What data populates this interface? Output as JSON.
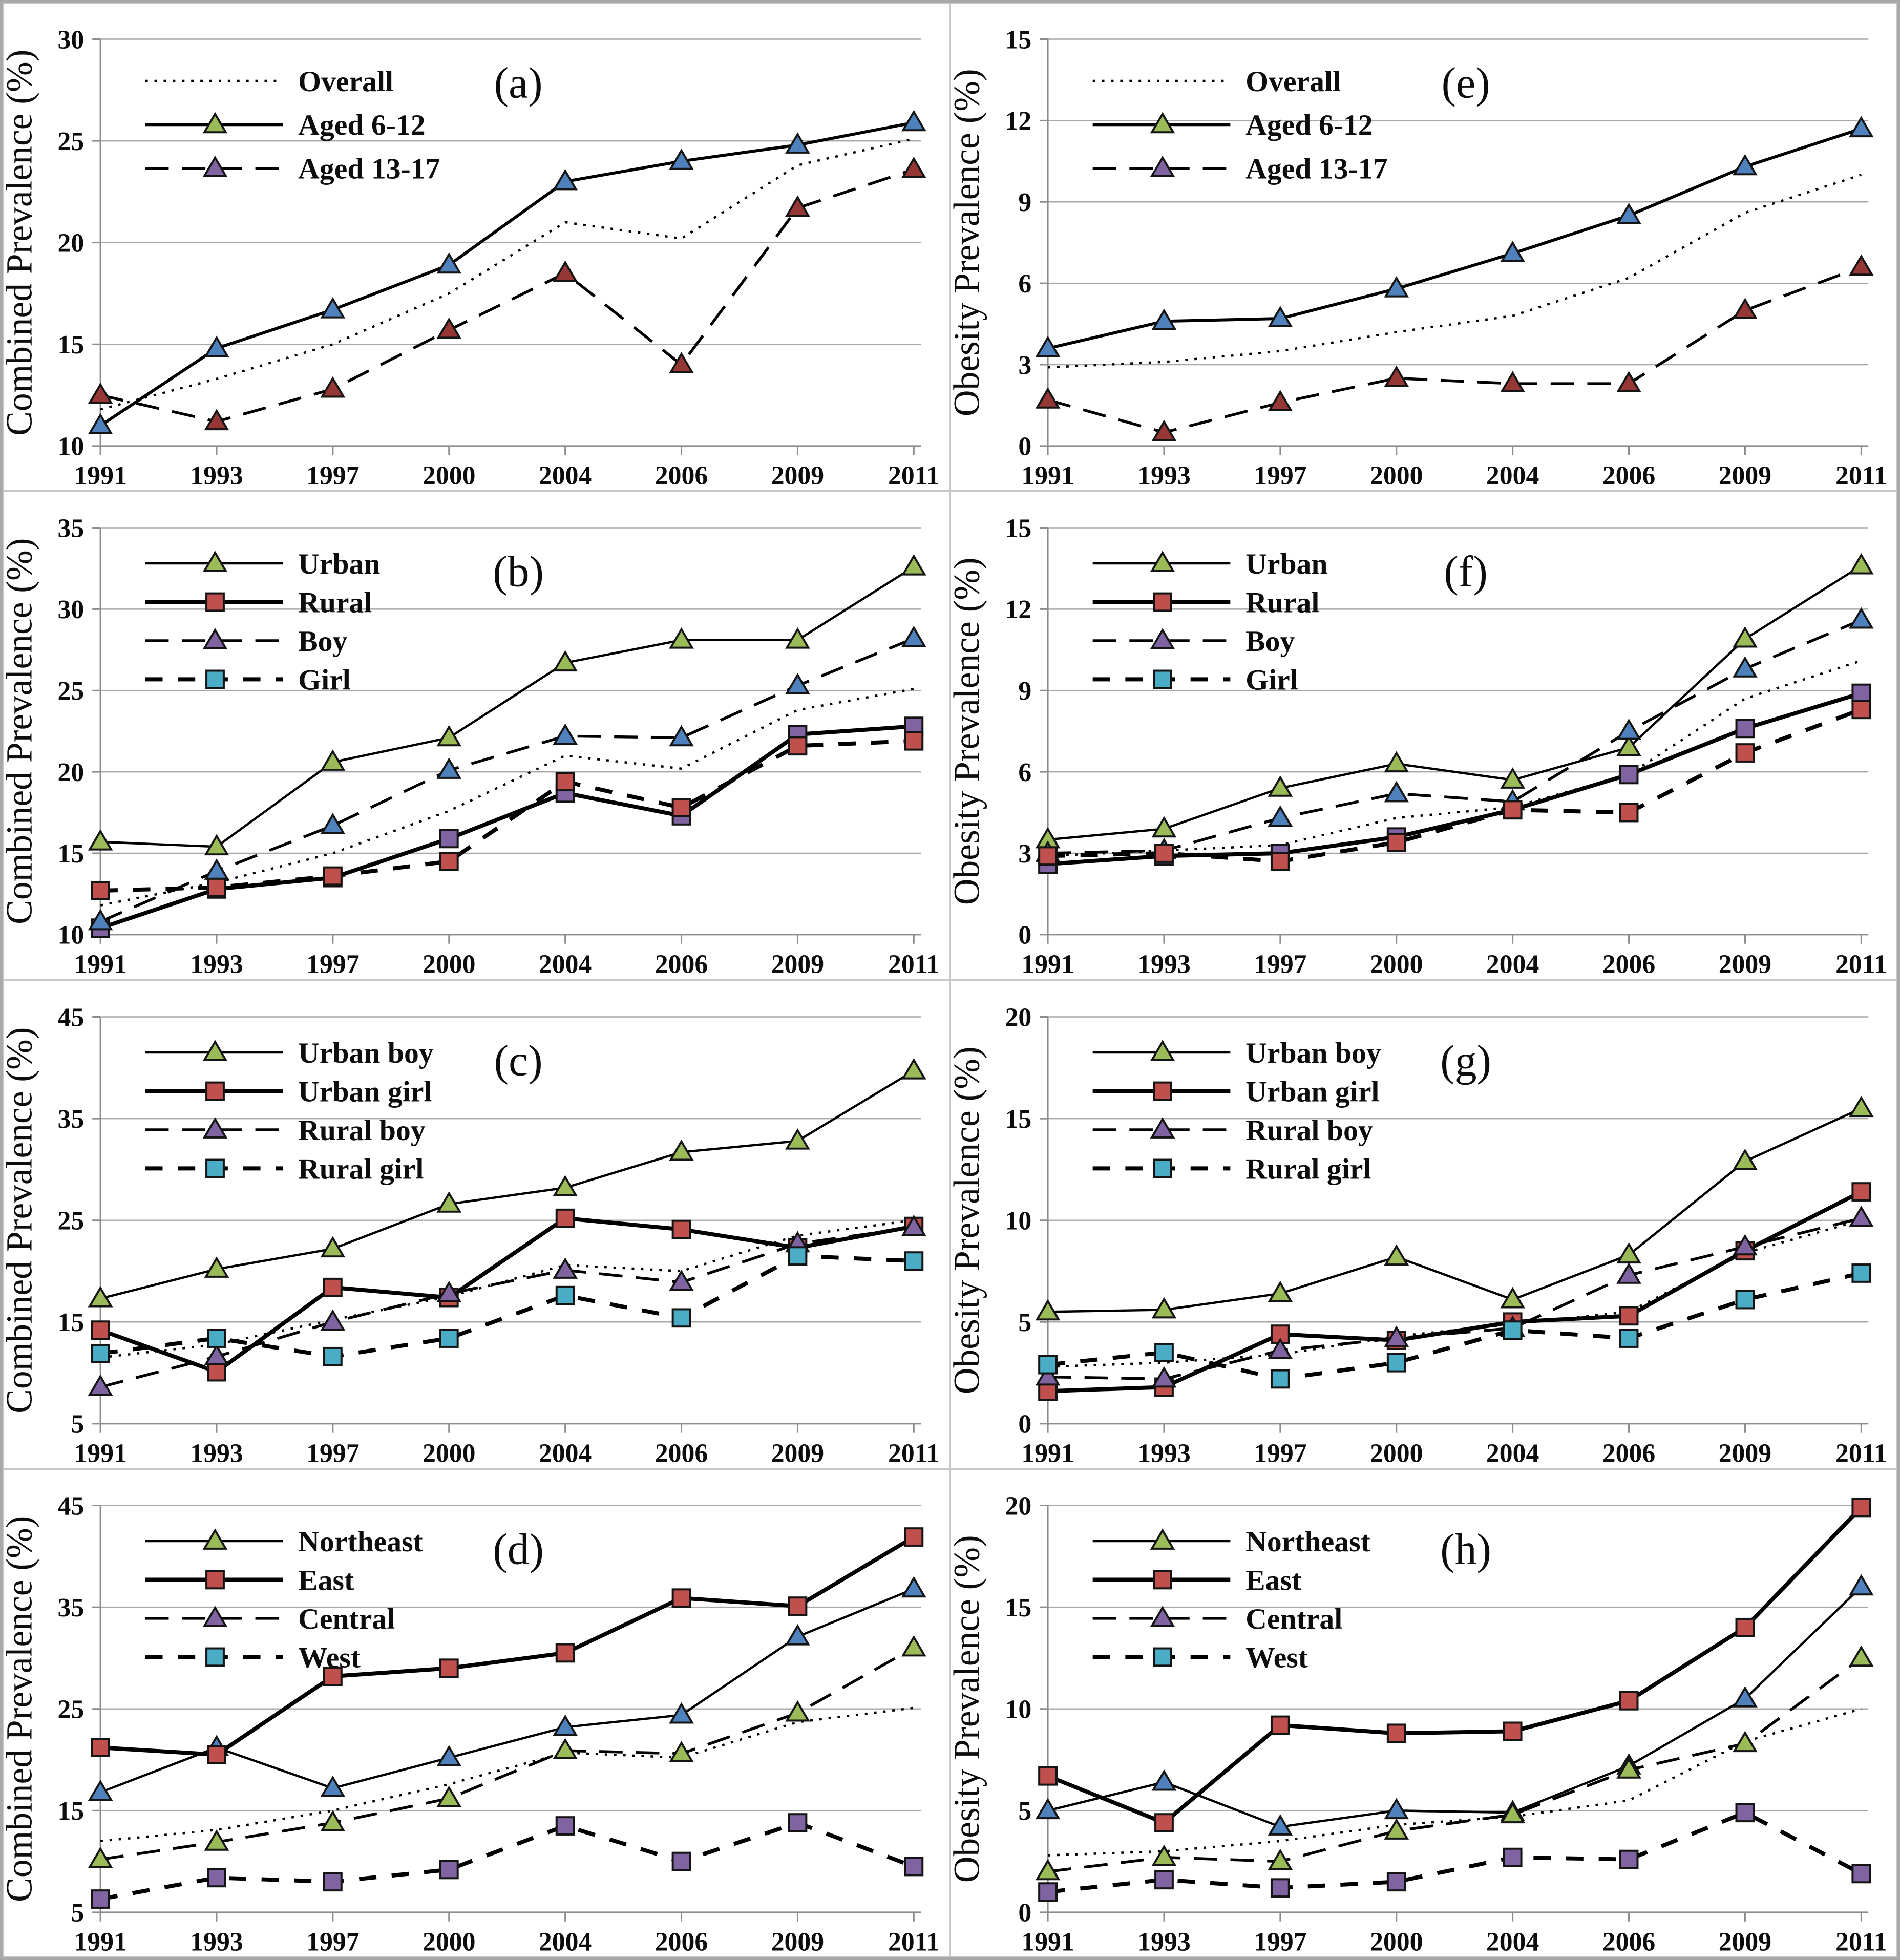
{
  "figure": {
    "years": [
      "1991",
      "1993",
      "1997",
      "2000",
      "2004",
      "2006",
      "2009",
      "2011"
    ],
    "left_column_ylabel": "Combined Prevalence (%)",
    "right_column_ylabel": "Obesity Prevalence (%)"
  },
  "colors": {
    "green": "#9BBB59",
    "red": "#C0504D",
    "purple": "#8064A2",
    "blue": "#4F81BD",
    "teal": "#4BACC6",
    "dark_red": "#953735",
    "line": "#000000",
    "grid": "#a8a8a8",
    "axis": "#8c8c8c",
    "text": "#0d0d0d"
  },
  "chart_data": [
    {
      "id": "a",
      "letter": "(a)",
      "type": "line",
      "ylabel": "Combined Prevalence (%)",
      "ylim": [
        10,
        30
      ],
      "yticks": [
        "10",
        "15",
        "20",
        "25",
        "30"
      ],
      "grid": true,
      "legend_position": "upper-left-inside",
      "series": [
        {
          "name": "Overall",
          "in_legend": true,
          "line": "dotted",
          "marker": "none",
          "marker_color": "line",
          "legend_color": "line",
          "values": [
            11.8,
            13.3,
            15.0,
            17.5,
            21.0,
            20.2,
            23.8,
            25.1
          ]
        },
        {
          "name": "Aged 6-12",
          "in_legend": true,
          "line": "solid",
          "marker": "triangle",
          "marker_color": "blue",
          "legend_color": "green",
          "values": [
            11.0,
            14.8,
            16.7,
            18.9,
            23.0,
            24.0,
            24.8,
            25.9
          ]
        },
        {
          "name": "Aged 13-17",
          "in_legend": true,
          "line": "dashed",
          "marker": "triangle",
          "marker_color": "dark_red",
          "legend_color": "purple",
          "values": [
            12.5,
            11.2,
            12.8,
            15.7,
            18.5,
            14.0,
            21.7,
            23.6
          ]
        }
      ]
    },
    {
      "id": "e",
      "letter": "(e)",
      "type": "line",
      "ylabel": "Obesity Prevalence (%)",
      "ylim": [
        0,
        15
      ],
      "yticks": [
        "0",
        "3",
        "6",
        "9",
        "12",
        "15"
      ],
      "grid": true,
      "legend_position": "upper-left-inside",
      "series": [
        {
          "name": "Overall",
          "in_legend": true,
          "line": "dotted",
          "marker": "none",
          "marker_color": "line",
          "legend_color": "line",
          "values": [
            2.9,
            3.1,
            3.5,
            4.2,
            4.8,
            6.2,
            8.6,
            10.0
          ]
        },
        {
          "name": "Aged 6-12",
          "in_legend": true,
          "line": "solid",
          "marker": "triangle",
          "marker_color": "blue",
          "legend_color": "green",
          "values": [
            3.6,
            4.6,
            4.7,
            5.8,
            7.1,
            8.5,
            10.3,
            11.7
          ]
        },
        {
          "name": "Aged 13-17",
          "in_legend": true,
          "line": "dashed",
          "marker": "triangle",
          "marker_color": "dark_red",
          "legend_color": "purple",
          "values": [
            1.7,
            0.5,
            1.6,
            2.5,
            2.3,
            2.3,
            5.0,
            6.6
          ]
        }
      ]
    },
    {
      "id": "b",
      "letter": "(b)",
      "type": "line",
      "ylabel": "Combined Prevalence (%)",
      "ylim": [
        10,
        35
      ],
      "yticks": [
        "10",
        "15",
        "20",
        "25",
        "30",
        "35"
      ],
      "grid": true,
      "legend_position": "upper-left-inside",
      "series": [
        {
          "name": "Overall",
          "in_legend": false,
          "line": "dotted",
          "marker": "none",
          "marker_color": "line",
          "legend_color": "line",
          "values": [
            11.8,
            13.2,
            15.0,
            17.6,
            21.0,
            20.2,
            23.8,
            25.1
          ]
        },
        {
          "name": "Urban",
          "in_legend": true,
          "line": "solid-thin",
          "marker": "triangle",
          "marker_color": "green",
          "legend_color": "green",
          "values": [
            15.7,
            15.4,
            20.6,
            22.1,
            26.7,
            28.1,
            28.1,
            32.6
          ]
        },
        {
          "name": "Rural",
          "in_legend": true,
          "line": "solid-thick",
          "marker": "square",
          "marker_color": "purple",
          "legend_color": "red",
          "values": [
            10.4,
            12.8,
            13.5,
            15.9,
            18.7,
            17.3,
            22.3,
            22.8
          ]
        },
        {
          "name": "Boy",
          "in_legend": true,
          "line": "dashed",
          "marker": "triangle",
          "marker_color": "blue",
          "legend_color": "purple",
          "values": [
            10.8,
            13.9,
            16.7,
            20.1,
            22.2,
            22.1,
            25.3,
            28.2
          ]
        },
        {
          "name": "Girl",
          "in_legend": true,
          "line": "dashed-thick",
          "marker": "square",
          "marker_color": "red",
          "legend_color": "teal",
          "values": [
            12.7,
            12.9,
            13.6,
            14.5,
            19.4,
            17.8,
            21.6,
            21.9
          ]
        }
      ]
    },
    {
      "id": "f",
      "letter": "(f)",
      "type": "line",
      "ylabel": "Obesity Prevalence (%)",
      "ylim": [
        0,
        15
      ],
      "yticks": [
        "0",
        "3",
        "6",
        "9",
        "12",
        "15"
      ],
      "grid": true,
      "legend_position": "upper-left-inside",
      "series": [
        {
          "name": "Overall",
          "in_legend": false,
          "line": "dotted",
          "marker": "none",
          "marker_color": "line",
          "legend_color": "line",
          "values": [
            2.9,
            3.1,
            3.3,
            4.3,
            4.7,
            5.9,
            8.7,
            10.1
          ]
        },
        {
          "name": "Urban",
          "in_legend": true,
          "line": "solid-thin",
          "marker": "triangle",
          "marker_color": "green",
          "legend_color": "green",
          "values": [
            3.5,
            3.9,
            5.4,
            6.3,
            5.7,
            6.9,
            10.9,
            13.6
          ]
        },
        {
          "name": "Rural",
          "in_legend": true,
          "line": "solid-thick",
          "marker": "square",
          "marker_color": "purple",
          "legend_color": "red",
          "values": [
            2.6,
            2.9,
            3.0,
            3.6,
            4.6,
            5.9,
            7.6,
            8.9
          ]
        },
        {
          "name": "Boy",
          "in_legend": true,
          "line": "dashed",
          "marker": "triangle",
          "marker_color": "blue",
          "legend_color": "purple",
          "values": [
            3.0,
            3.1,
            4.3,
            5.2,
            4.9,
            7.5,
            9.8,
            11.6
          ]
        },
        {
          "name": "Girl",
          "in_legend": true,
          "line": "dashed-thick",
          "marker": "square",
          "marker_color": "red",
          "legend_color": "teal",
          "values": [
            2.9,
            3.0,
            2.7,
            3.4,
            4.6,
            4.5,
            6.7,
            8.3
          ]
        }
      ]
    },
    {
      "id": "c",
      "letter": "(c)",
      "type": "line",
      "ylabel": "Combined Prevalence (%)",
      "ylim": [
        5,
        45
      ],
      "yticks": [
        "5",
        "15",
        "25",
        "35",
        "45"
      ],
      "grid": true,
      "legend_position": "upper-left-inside",
      "series": [
        {
          "name": "Overall",
          "in_legend": false,
          "line": "dotted",
          "marker": "none",
          "marker_color": "line",
          "legend_color": "line",
          "values": [
            11.5,
            12.8,
            15.2,
            17.5,
            20.6,
            20.0,
            23.5,
            25.0
          ]
        },
        {
          "name": "Urban boy",
          "in_legend": true,
          "line": "solid-thin",
          "marker": "triangle",
          "marker_color": "green",
          "legend_color": "green",
          "values": [
            17.3,
            20.2,
            22.2,
            26.6,
            28.2,
            31.7,
            32.8,
            39.7
          ]
        },
        {
          "name": "Urban girl",
          "in_legend": true,
          "line": "solid-thick",
          "marker": "square",
          "marker_color": "red",
          "legend_color": "red",
          "values": [
            14.2,
            10.1,
            18.4,
            17.4,
            25.2,
            24.1,
            22.3,
            24.4
          ]
        },
        {
          "name": "Rural boy",
          "in_legend": true,
          "line": "dashed",
          "marker": "triangle",
          "marker_color": "purple",
          "legend_color": "purple",
          "values": [
            8.6,
            11.6,
            15.0,
            17.8,
            20.1,
            18.9,
            22.7,
            24.3
          ]
        },
        {
          "name": "Rural girl",
          "in_legend": true,
          "line": "dashed-thick",
          "marker": "square",
          "marker_color": "teal",
          "legend_color": "teal",
          "values": [
            11.9,
            13.4,
            11.6,
            13.4,
            17.6,
            15.4,
            21.5,
            21.0
          ]
        }
      ]
    },
    {
      "id": "g",
      "letter": "(g)",
      "type": "line",
      "ylabel": "Obesity Prevalence (%)",
      "ylim": [
        0,
        20
      ],
      "yticks": [
        "0",
        "5",
        "10",
        "15",
        "20"
      ],
      "grid": true,
      "legend_position": "upper-left-inside",
      "series": [
        {
          "name": "Overall",
          "in_legend": false,
          "line": "dotted",
          "marker": "none",
          "marker_color": "line",
          "legend_color": "line",
          "values": [
            2.8,
            3.0,
            3.4,
            4.3,
            4.9,
            5.5,
            8.4,
            10.0
          ]
        },
        {
          "name": "Urban boy",
          "in_legend": true,
          "line": "solid-thin",
          "marker": "triangle",
          "marker_color": "green",
          "legend_color": "green",
          "values": [
            5.5,
            5.6,
            6.4,
            8.2,
            6.1,
            8.3,
            12.9,
            15.5
          ]
        },
        {
          "name": "Urban girl",
          "in_legend": true,
          "line": "solid-thick",
          "marker": "square",
          "marker_color": "red",
          "legend_color": "red",
          "values": [
            1.6,
            1.8,
            4.4,
            4.1,
            5.0,
            5.3,
            8.5,
            11.4
          ]
        },
        {
          "name": "Rural boy",
          "in_legend": true,
          "line": "dashed",
          "marker": "triangle",
          "marker_color": "purple",
          "legend_color": "purple",
          "values": [
            2.3,
            2.2,
            3.6,
            4.2,
            4.7,
            7.3,
            8.7,
            10.1
          ]
        },
        {
          "name": "Rural girl",
          "in_legend": true,
          "line": "dashed-thick",
          "marker": "square",
          "marker_color": "teal",
          "legend_color": "teal",
          "values": [
            2.9,
            3.5,
            2.2,
            3.0,
            4.6,
            4.2,
            6.1,
            7.4
          ]
        }
      ]
    },
    {
      "id": "d",
      "letter": "(d)",
      "type": "line",
      "ylabel": "Combined Prevalence (%)",
      "ylim": [
        5,
        45
      ],
      "yticks": [
        "5",
        "15",
        "25",
        "35",
        "45"
      ],
      "grid": true,
      "legend_position": "upper-left-inside",
      "series": [
        {
          "name": "Overall",
          "in_legend": false,
          "line": "dotted",
          "marker": "none",
          "marker_color": "line",
          "legend_color": "line",
          "values": [
            12.0,
            13.1,
            15.0,
            17.6,
            20.7,
            20.2,
            23.7,
            25.1
          ]
        },
        {
          "name": "Northeast",
          "in_legend": true,
          "line": "solid-thin",
          "marker": "triangle",
          "marker_color": "blue",
          "legend_color": "green",
          "values": [
            16.8,
            21.2,
            17.2,
            20.2,
            23.2,
            24.4,
            32.1,
            36.8
          ]
        },
        {
          "name": "East",
          "in_legend": true,
          "line": "solid-thick",
          "marker": "square",
          "marker_color": "red",
          "legend_color": "red",
          "values": [
            21.2,
            20.5,
            28.2,
            29.0,
            30.5,
            35.9,
            35.1,
            41.9
          ]
        },
        {
          "name": "Central",
          "in_legend": true,
          "line": "dashed",
          "marker": "triangle",
          "marker_color": "green",
          "legend_color": "purple",
          "values": [
            10.2,
            11.9,
            13.8,
            16.2,
            20.9,
            20.6,
            24.6,
            31.0
          ]
        },
        {
          "name": "West",
          "in_legend": true,
          "line": "dashed-thick",
          "marker": "square",
          "marker_color": "purple",
          "legend_color": "teal",
          "values": [
            6.3,
            8.4,
            8.0,
            9.2,
            13.5,
            10.0,
            13.8,
            9.5
          ]
        }
      ]
    },
    {
      "id": "h",
      "letter": "(h)",
      "type": "line",
      "ylabel": "Obesity Prevalence (%)",
      "ylim": [
        0,
        20
      ],
      "yticks": [
        "0",
        "5",
        "10",
        "15",
        "20"
      ],
      "grid": true,
      "legend_position": "upper-left-inside",
      "series": [
        {
          "name": "Overall",
          "in_legend": false,
          "line": "dotted",
          "marker": "none",
          "marker_color": "line",
          "legend_color": "line",
          "values": [
            2.8,
            3.0,
            3.5,
            4.3,
            4.7,
            5.5,
            8.4,
            10.0
          ]
        },
        {
          "name": "Northeast",
          "in_legend": true,
          "line": "solid-thin",
          "marker": "triangle",
          "marker_color": "blue",
          "legend_color": "green",
          "values": [
            5.0,
            6.4,
            4.2,
            5.0,
            4.9,
            7.2,
            10.5,
            16.0
          ]
        },
        {
          "name": "East",
          "in_legend": true,
          "line": "solid-thick",
          "marker": "square",
          "marker_color": "red",
          "legend_color": "red",
          "values": [
            6.7,
            4.4,
            9.2,
            8.8,
            8.9,
            10.4,
            14.0,
            19.9
          ]
        },
        {
          "name": "Central",
          "in_legend": true,
          "line": "dashed",
          "marker": "triangle",
          "marker_color": "green",
          "legend_color": "purple",
          "values": [
            2.0,
            2.7,
            2.5,
            4.0,
            4.8,
            7.0,
            8.3,
            12.5
          ]
        },
        {
          "name": "West",
          "in_legend": true,
          "line": "dashed-thick",
          "marker": "square",
          "marker_color": "purple",
          "legend_color": "teal",
          "values": [
            1.0,
            1.6,
            1.2,
            1.5,
            2.7,
            2.6,
            4.9,
            1.9
          ]
        }
      ]
    }
  ]
}
